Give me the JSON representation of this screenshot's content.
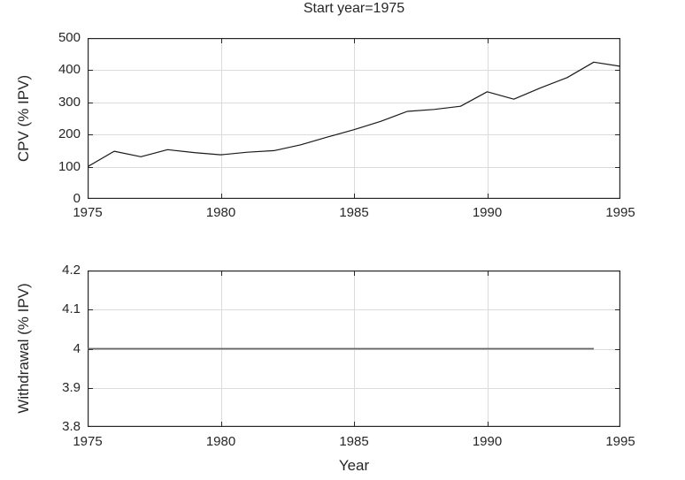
{
  "figure": {
    "background": "#ffffff",
    "axis_color": "#262626",
    "grid_color": "#dbdbdb",
    "tick_length": 5
  },
  "chart_data": [
    {
      "type": "line",
      "title": "Start year=1975",
      "ylabel": "CPV (% IPV)",
      "x": [
        1975,
        1976,
        1977,
        1978,
        1979,
        1980,
        1981,
        1982,
        1983,
        1984,
        1985,
        1986,
        1987,
        1988,
        1989,
        1990,
        1991,
        1992,
        1993,
        1994,
        1995
      ],
      "y": [
        100,
        148,
        131,
        153,
        144,
        137,
        145,
        150,
        168,
        192,
        215,
        241,
        272,
        278,
        288,
        333,
        310,
        345,
        377,
        425,
        412
      ],
      "xlim": [
        1975,
        1995
      ],
      "ylim": [
        0,
        500
      ],
      "xticks": [
        1975,
        1980,
        1985,
        1990,
        1995
      ],
      "xtick_labels": [
        "1975",
        "1980",
        "1985",
        "1990",
        "1995"
      ],
      "yticks": [
        0,
        100,
        200,
        300,
        400,
        500
      ],
      "ytick_labels": [
        "0",
        "100",
        "200",
        "300",
        "400",
        "500"
      ],
      "grid": true,
      "legend": "none",
      "line_color": "#1a1a1a",
      "line_width": 1.2
    },
    {
      "type": "line",
      "title": "",
      "ylabel": "Withdrawal (% IPV)",
      "xlabel": "Year",
      "x": [
        1975,
        1976,
        1977,
        1978,
        1979,
        1980,
        1981,
        1982,
        1983,
        1984,
        1985,
        1986,
        1987,
        1988,
        1989,
        1990,
        1991,
        1992,
        1993,
        1994
      ],
      "y": [
        4,
        4,
        4,
        4,
        4,
        4,
        4,
        4,
        4,
        4,
        4,
        4,
        4,
        4,
        4,
        4,
        4,
        4,
        4,
        4
      ],
      "xlim": [
        1975,
        1995
      ],
      "ylim": [
        3.8,
        4.2
      ],
      "xticks": [
        1975,
        1980,
        1985,
        1990,
        1995
      ],
      "xtick_labels": [
        "1975",
        "1980",
        "1985",
        "1990",
        "1995"
      ],
      "yticks": [
        3.8,
        3.9,
        4,
        4.1,
        4.2
      ],
      "ytick_labels": [
        "3.8",
        "3.9",
        "4",
        "4.1",
        "4.2"
      ],
      "grid": true,
      "legend": "none",
      "line_color": "#666666",
      "line_width": 1.8
    }
  ]
}
